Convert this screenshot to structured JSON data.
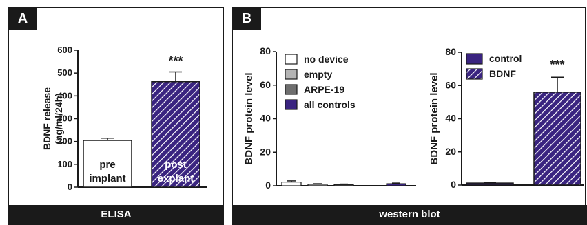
{
  "panels": [
    {
      "label": "A",
      "footer": "ELISA"
    },
    {
      "label": "B",
      "footer": "western blot"
    }
  ],
  "colors": {
    "purple": "#3a2480",
    "stripe": "#ffffff",
    "gray_light": "#b4b4b4",
    "gray_dark": "#6e6e6e",
    "black": "#1a1a1a"
  },
  "chart_data": [
    {
      "type": "bar",
      "panel": "A",
      "ylabel_lines": [
        "BDNF release",
        "(ng/ml/24h)"
      ],
      "ylim": [
        0,
        600
      ],
      "yticks": [
        0,
        100,
        200,
        300,
        400,
        500,
        600
      ],
      "categories": [
        [
          "pre",
          "implant"
        ],
        [
          "post",
          "explant"
        ]
      ],
      "values": [
        205,
        462
      ],
      "errors": [
        10,
        43
      ],
      "fills": [
        "white",
        "purple-hatched"
      ],
      "annotations": [
        "",
        "***"
      ],
      "grid": false
    },
    {
      "type": "bar",
      "panel": "B-left",
      "ylabel": "BDNF protein level",
      "ylim": [
        0,
        80
      ],
      "yticks": [
        0,
        20,
        40,
        60,
        80
      ],
      "series": [
        {
          "name": "no device",
          "value": 2.2,
          "error": 0.7,
          "fill": "white"
        },
        {
          "name": "empty",
          "value": 0.9,
          "error": 0.3,
          "fill": "gray-light"
        },
        {
          "name": "ARPE-19",
          "value": 0.7,
          "error": 0.3,
          "fill": "gray-dark"
        },
        {
          "name": "all controls",
          "value": 1.2,
          "error": 0.4,
          "fill": "purple"
        }
      ],
      "legend": "top-left",
      "grid": false
    },
    {
      "type": "bar",
      "panel": "B-right",
      "ylabel": "BDNF protein level",
      "ylim": [
        0,
        80
      ],
      "yticks": [
        0,
        20,
        40,
        60,
        80
      ],
      "series": [
        {
          "name": "control",
          "value": 1.2,
          "error": 0.3,
          "fill": "purple"
        },
        {
          "name": "BDNF",
          "value": 56,
          "error": 9,
          "fill": "purple-hatched"
        }
      ],
      "annotations": [
        "",
        "***"
      ],
      "legend": "top-left",
      "grid": false
    }
  ]
}
